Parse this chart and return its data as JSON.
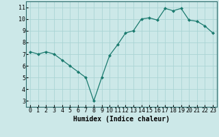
{
  "x": [
    0,
    1,
    2,
    3,
    4,
    5,
    6,
    7,
    8,
    9,
    10,
    11,
    12,
    13,
    14,
    15,
    16,
    17,
    18,
    19,
    20,
    21,
    22,
    23
  ],
  "y": [
    7.2,
    7.0,
    7.2,
    7.0,
    6.5,
    6.0,
    5.5,
    5.0,
    3.0,
    5.0,
    6.9,
    7.8,
    8.8,
    9.0,
    10.0,
    10.1,
    9.9,
    10.9,
    10.7,
    10.9,
    9.9,
    9.8,
    9.4,
    8.8
  ],
  "line_color": "#1a7a6e",
  "marker": "D",
  "marker_size": 2,
  "bg_color": "#cce8e8",
  "grid_color": "#aad4d4",
  "xlabel": "Humidex (Indice chaleur)",
  "xlim": [
    -0.5,
    23.5
  ],
  "ylim": [
    2.5,
    11.5
  ],
  "xticks": [
    0,
    1,
    2,
    3,
    4,
    5,
    6,
    7,
    8,
    9,
    10,
    11,
    12,
    13,
    14,
    15,
    16,
    17,
    18,
    19,
    20,
    21,
    22,
    23
  ],
  "yticks": [
    3,
    4,
    5,
    6,
    7,
    8,
    9,
    10,
    11
  ],
  "xlabel_fontsize": 7,
  "tick_fontsize": 6
}
